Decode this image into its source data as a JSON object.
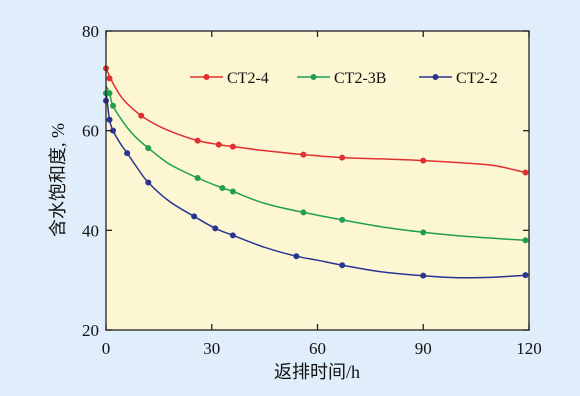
{
  "colors": {
    "background": "#dfeefa",
    "plot_area": "#fdf6d3",
    "series": [
      "#e03030",
      "#1f9f4f",
      "#2a3592"
    ]
  },
  "chart_data": {
    "type": "line",
    "title": "",
    "xlabel": "返排时间/h",
    "ylabel": "含水饱和度, %",
    "xlim": [
      0,
      120
    ],
    "ylim": [
      20,
      80
    ],
    "xticks": [
      0,
      30,
      60,
      90,
      120
    ],
    "yticks": [
      20,
      40,
      60,
      80
    ],
    "xtick_labels": [
      "0",
      "30",
      "60",
      "90",
      "120"
    ],
    "ytick_labels": [
      "20",
      "40",
      "60",
      "80"
    ],
    "grid": false,
    "legend_position": "top-right",
    "series": [
      {
        "name": "CT2-4",
        "color": "#e03030",
        "points": [
          [
            0,
            72.5
          ],
          [
            1,
            70.5
          ],
          [
            10,
            63
          ],
          [
            26,
            58
          ],
          [
            32,
            57.2
          ],
          [
            36,
            56.8
          ],
          [
            56,
            55.2
          ],
          [
            67,
            54.6
          ],
          [
            90,
            54
          ],
          [
            119,
            51.6
          ]
        ],
        "curve": [
          [
            0,
            72.5
          ],
          [
            2,
            69.5
          ],
          [
            5,
            66.2
          ],
          [
            10,
            63
          ],
          [
            15,
            60.9
          ],
          [
            20,
            59.4
          ],
          [
            26,
            58
          ],
          [
            32,
            57.2
          ],
          [
            36,
            56.8
          ],
          [
            45,
            56
          ],
          [
            56,
            55.2
          ],
          [
            67,
            54.6
          ],
          [
            80,
            54.3
          ],
          [
            90,
            54
          ],
          [
            100,
            53.6
          ],
          [
            110,
            53
          ],
          [
            119,
            51.6
          ]
        ]
      },
      {
        "name": "CT2-3B",
        "color": "#1f9f4f",
        "points": [
          [
            0,
            67.5
          ],
          [
            1,
            67.5
          ],
          [
            2,
            65
          ],
          [
            12,
            56.5
          ],
          [
            26,
            50.5
          ],
          [
            33,
            48.5
          ],
          [
            36,
            47.8
          ],
          [
            56,
            43.6
          ],
          [
            67,
            42.1
          ],
          [
            90,
            39.6
          ],
          [
            119,
            38
          ]
        ],
        "curve": [
          [
            0,
            69
          ],
          [
            1,
            67.5
          ],
          [
            2,
            65
          ],
          [
            5,
            61.6
          ],
          [
            8,
            59
          ],
          [
            12,
            56.5
          ],
          [
            18,
            53.3
          ],
          [
            26,
            50.5
          ],
          [
            33,
            48.5
          ],
          [
            36,
            47.8
          ],
          [
            45,
            45.4
          ],
          [
            56,
            43.6
          ],
          [
            67,
            42.1
          ],
          [
            80,
            40.5
          ],
          [
            90,
            39.6
          ],
          [
            100,
            38.9
          ],
          [
            110,
            38.4
          ],
          [
            119,
            38
          ]
        ]
      },
      {
        "name": "CT2-2",
        "color": "#2a3592",
        "points": [
          [
            0,
            66
          ],
          [
            1,
            62.2
          ],
          [
            2,
            60
          ],
          [
            6,
            55.5
          ],
          [
            12,
            49.6
          ],
          [
            25,
            42.8
          ],
          [
            31,
            40.4
          ],
          [
            36,
            39
          ],
          [
            54,
            34.8
          ],
          [
            67,
            33
          ],
          [
            90,
            30.9
          ],
          [
            119,
            31
          ]
        ],
        "curve": [
          [
            0,
            68
          ],
          [
            1,
            62.2
          ],
          [
            2,
            60
          ],
          [
            4,
            57.5
          ],
          [
            6,
            55.5
          ],
          [
            9,
            52.4
          ],
          [
            12,
            49.6
          ],
          [
            18,
            45.8
          ],
          [
            25,
            42.8
          ],
          [
            31,
            40.4
          ],
          [
            36,
            39
          ],
          [
            45,
            36.6
          ],
          [
            54,
            34.8
          ],
          [
            60,
            34
          ],
          [
            67,
            33
          ],
          [
            78,
            31.7
          ],
          [
            90,
            30.9
          ],
          [
            100,
            30.5
          ],
          [
            110,
            30.6
          ],
          [
            119,
            31
          ]
        ]
      }
    ]
  }
}
